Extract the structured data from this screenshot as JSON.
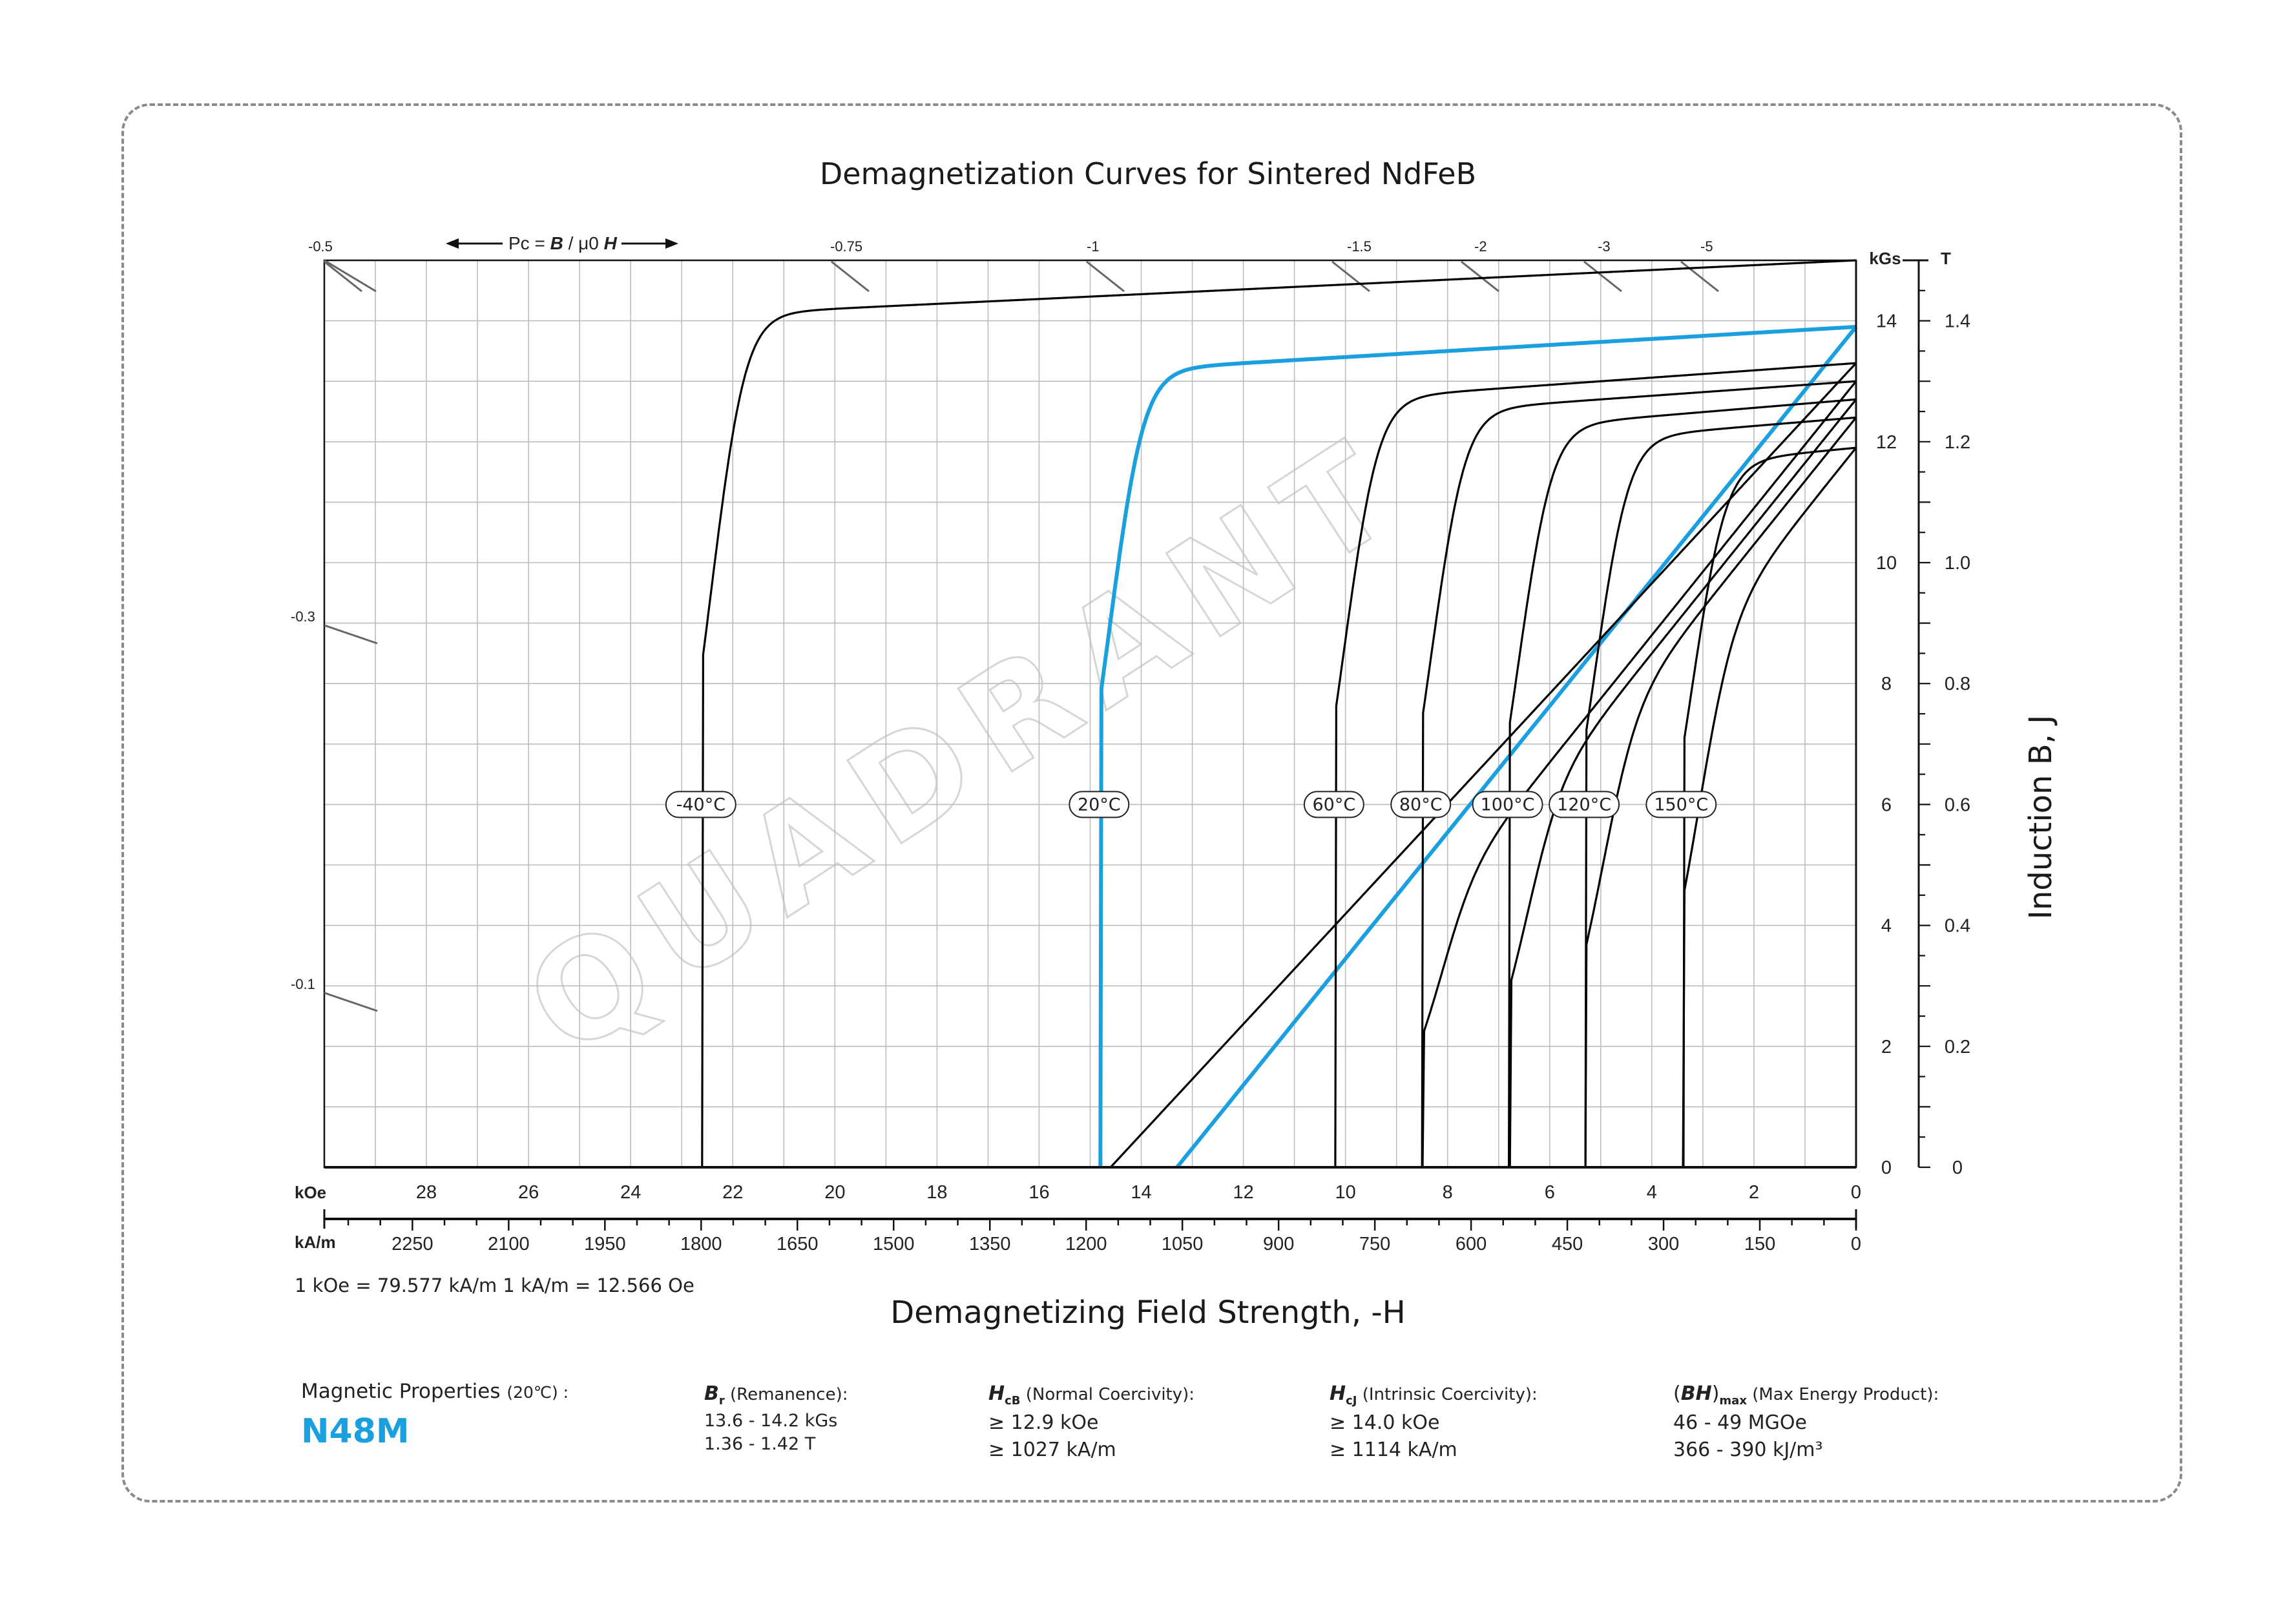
{
  "chart_data": {
    "type": "line",
    "title": "Demagnetization Curves for Sintered NdFeB",
    "xlabel": "Demagnetizing Field Strength, -H",
    "ylabel": "Induction B, J",
    "x_unit_primary": "kOe",
    "x_unit_secondary": "kA/m",
    "y_unit_primary": "kGs",
    "y_unit_secondary": "T",
    "xlim": [
      30,
      0
    ],
    "ylim": [
      0,
      15
    ],
    "x_ticks_koe": [
      "28",
      "26",
      "24",
      "22",
      "20",
      "18",
      "16",
      "14",
      "12",
      "10",
      "8",
      "6",
      "4",
      "2",
      "0"
    ],
    "x_ticks_kam": [
      "2250",
      "2100",
      "1950",
      "1800",
      "1650",
      "1500",
      "1350",
      "1200",
      "1050",
      "900",
      "750",
      "600",
      "450",
      "300",
      "150",
      "0"
    ],
    "y_ticks_kgs": [
      "0",
      "2",
      "4",
      "6",
      "8",
      "10",
      "12",
      "14"
    ],
    "y_ticks_t": [
      "0",
      "0.2",
      "0.4",
      "0.6",
      "0.8",
      "1.0",
      "1.2",
      "1.4"
    ],
    "grid": true,
    "conversion_note": "1 kOe = 79.577 kA/m   1 kA/m = 12.566 Oe",
    "pc_label": {
      "prefix": "Pc = ",
      "b": "B",
      "mu": "μ0",
      "h": "H"
    },
    "pc_lines": [
      {
        "label": "-0.5",
        "side": "top"
      },
      {
        "label": "-0.75",
        "side": "top"
      },
      {
        "label": "-1",
        "side": "top"
      },
      {
        "label": "-1.5",
        "side": "top"
      },
      {
        "label": "-2",
        "side": "top"
      },
      {
        "label": "-3",
        "side": "top"
      },
      {
        "label": "-5",
        "side": "top"
      },
      {
        "label": "-0.3",
        "side": "left"
      },
      {
        "label": "-0.1",
        "side": "left"
      }
    ],
    "series": [
      {
        "name": "-40°C",
        "kind": "J",
        "color": "#000000",
        "Br": 15.0,
        "Hcj": 22.6,
        "slope": 0.04
      },
      {
        "name": "20°C",
        "kind": "J",
        "color": "#1a9fdf",
        "Br": 13.9,
        "Hcj": 14.8,
        "slope": 0.05,
        "normal_Hcb": 13.3
      },
      {
        "name": "60°C",
        "kind": "J",
        "color": "#000000",
        "Br": 13.3,
        "Hcj": 10.2,
        "slope": 0.06,
        "normal_Hcb": 14.6
      },
      {
        "name": "80°C",
        "kind": "J",
        "color": "#000000",
        "Br": 13.0,
        "Hcj": 8.5,
        "slope": 0.06
      },
      {
        "name": "100°C",
        "kind": "J",
        "color": "#000000",
        "Br": 12.7,
        "Hcj": 6.8,
        "slope": 0.07
      },
      {
        "name": "120°C",
        "kind": "J",
        "color": "#000000",
        "Br": 12.4,
        "Hcj": 5.3,
        "slope": 0.07
      },
      {
        "name": "150°C",
        "kind": "J",
        "color": "#000000",
        "Br": 11.9,
        "Hcj": 3.4,
        "slope": 0.08
      }
    ],
    "curve_label_y": 6.0,
    "watermark": "QUADRANT"
  },
  "properties": {
    "header": "Magnetic Properties",
    "header_temp": "(20℃) :",
    "grade": "N48M",
    "br": {
      "sym": "B",
      "sub": "r",
      "label": " (Remanence):",
      "values": [
        "13.6 - 14.2 kGs",
        "1.36 - 1.42 T"
      ]
    },
    "hcb": {
      "sym": "H",
      "sub": "cB",
      "label": " (Normal Coercivity):",
      "values": [
        "≥ 12.9 kOe",
        "≥ 1027 kA/m"
      ]
    },
    "hcj": {
      "sym": "H",
      "sub": "cJ",
      "label": " (Intrinsic Coercivity):",
      "values": [
        "≥ 14.0 kOe",
        "≥ 1114 kA/m"
      ]
    },
    "bhmax": {
      "sym": "BH",
      "sub": "max",
      "label": " (Max Energy Product):",
      "values": [
        "46 - 49 MGOe",
        "366 - 390 kJ/m³"
      ]
    }
  },
  "colors": {
    "accent": "#1a9fdf",
    "curve": "#000000",
    "grid": "#b5b5b5",
    "frame": "#8a8a8a"
  }
}
